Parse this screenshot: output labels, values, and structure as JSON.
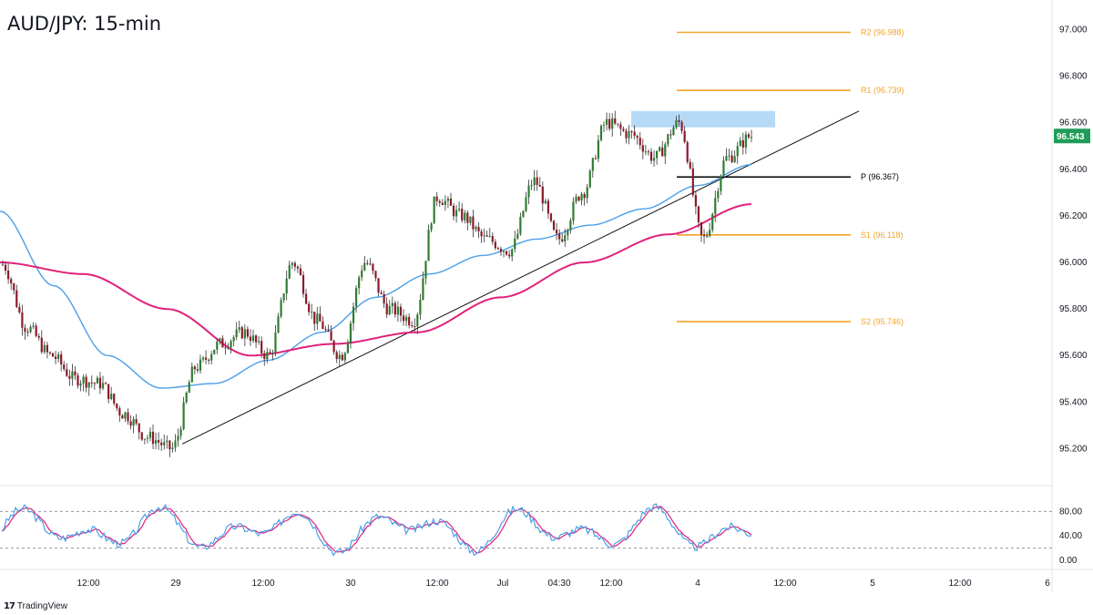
{
  "header": {
    "title": "AUD/JPY: 15-min"
  },
  "branding": {
    "name": "TradingView",
    "logo_icon": "tradingview-logo-icon"
  },
  "colors": {
    "bull": "#2e7d32",
    "bear": "#8b1a2c",
    "wick": "#333333",
    "ma_fast": "#4a9fe8",
    "ma_slow": "#e0217a",
    "level": "#f5a32a",
    "pivot": "#000000",
    "zone": "#a9d2f5",
    "price_badge": "#1f9c5a",
    "stoch_k": "#4a9fe8",
    "stoch_d": "#e0217a"
  },
  "chart_data": {
    "type": "candlestick",
    "symbol": "AUD/JPY",
    "timeframe": "15-min",
    "ylim": [
      95.1,
      97.08
    ],
    "y_ticks": [
      "97.000",
      "96.800",
      "96.600",
      "96.400",
      "96.200",
      "96.000",
      "95.800",
      "95.600",
      "95.400",
      "95.200"
    ],
    "x_ticks": [
      "12:00",
      "29",
      "12:00",
      "30",
      "12:00",
      "Jul",
      "04:30",
      "12:00",
      "4",
      "12:00",
      "5",
      "12:00",
      "6"
    ],
    "last_price": {
      "label": "96.543",
      "value": 96.543
    },
    "levels": [
      {
        "name": "R2",
        "label": "R2 (96.988)",
        "value": 96.988,
        "type": "resistance"
      },
      {
        "name": "R1",
        "label": "R1 (96.739)",
        "value": 96.739,
        "type": "resistance"
      },
      {
        "name": "P",
        "label": "P (96.367)",
        "value": 96.367,
        "type": "pivot"
      },
      {
        "name": "S1",
        "label": "S1 (96.118)",
        "value": 96.118,
        "type": "support"
      },
      {
        "name": "S2",
        "label": "S2 (95.746)",
        "value": 95.746,
        "type": "support"
      }
    ],
    "resistance_zone": {
      "y_range": [
        96.58,
        96.65
      ]
    },
    "trendline": {
      "start_value": 95.22,
      "end_value": 96.65
    },
    "price_path_anchors": [
      95.99,
      95.72,
      95.6,
      95.5,
      95.48,
      95.35,
      95.25,
      95.2,
      95.55,
      95.65,
      95.7,
      95.6,
      96.0,
      95.75,
      95.6,
      96.0,
      95.8,
      95.75,
      96.28,
      96.2,
      96.1,
      96.05,
      96.35,
      96.1,
      96.3,
      96.6,
      96.55,
      96.45,
      96.6,
      96.1,
      96.45,
      96.543
    ],
    "moving_averages": [
      {
        "name": "fast-ma",
        "anchors": [
          96.22,
          95.9,
          95.6,
          95.46,
          95.48,
          95.58,
          95.7,
          95.85,
          95.95,
          96.03,
          96.1,
          96.16,
          96.23,
          96.33,
          96.42
        ]
      },
      {
        "name": "slow-ma",
        "anchors": [
          96.0,
          95.95,
          95.8,
          95.6,
          95.65,
          95.7,
          95.85,
          96.0,
          96.12,
          96.25
        ]
      }
    ],
    "stochastic": {
      "ylim": [
        0,
        100
      ],
      "y_ticks": [
        "80.00",
        "40.00",
        "0.00"
      ],
      "bands": [
        80,
        20
      ]
    }
  }
}
